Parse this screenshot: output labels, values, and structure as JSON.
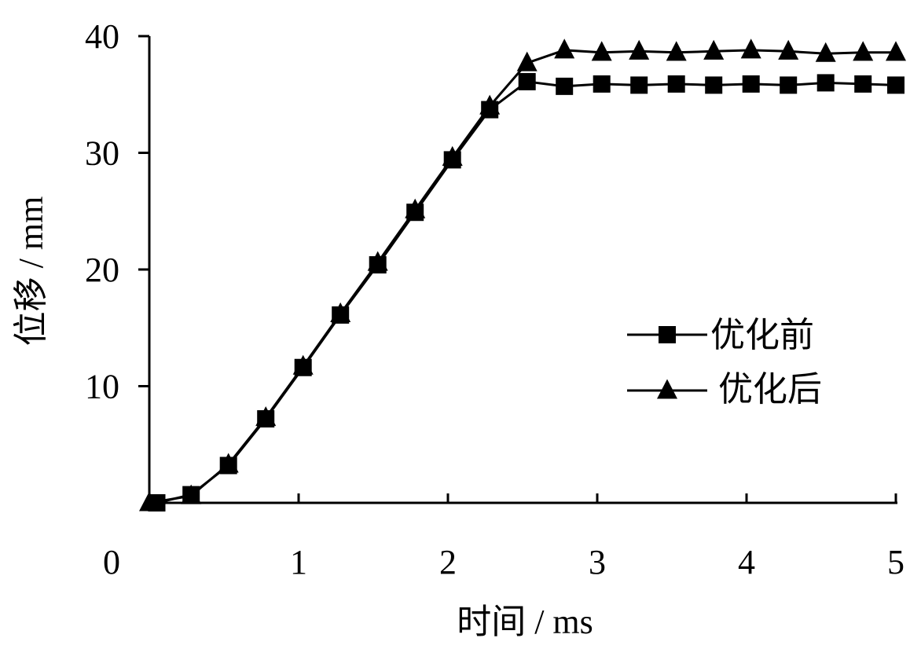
{
  "chart_data": {
    "type": "line",
    "xlabel": "时间 / ms",
    "ylabel": "位移 / mm",
    "xlim": [
      0,
      5
    ],
    "ylim": [
      0,
      40
    ],
    "x_origin_label": "0",
    "xticks": [
      1,
      2,
      3,
      4,
      5
    ],
    "xtick_labels": [
      "1",
      "2",
      "3",
      "4",
      "5"
    ],
    "yticks": [
      10,
      20,
      30,
      40
    ],
    "ytick_labels": [
      "10",
      "20",
      "30",
      "40"
    ],
    "grid": false,
    "legend_position": "right",
    "series": [
      {
        "name": "优化前",
        "marker": "square",
        "color": "#000000",
        "x": [
          0.05,
          0.28,
          0.53,
          0.78,
          1.03,
          1.28,
          1.53,
          1.78,
          2.03,
          2.28,
          2.53,
          2.78,
          3.03,
          3.28,
          3.53,
          3.78,
          4.03,
          4.28,
          4.53,
          4.78,
          5.03
        ],
        "y": [
          0,
          0.7,
          3.2,
          7.2,
          11.6,
          16.1,
          20.4,
          24.9,
          29.4,
          33.7,
          36.1,
          35.7,
          35.9,
          35.8,
          35.9,
          35.8,
          35.9,
          35.8,
          36.0,
          35.9,
          35.8
        ]
      },
      {
        "name": "优化后",
        "marker": "triangle",
        "color": "#000000",
        "x": [
          0.0,
          0.28,
          0.53,
          0.78,
          1.03,
          1.28,
          1.53,
          1.78,
          2.03,
          2.28,
          2.53,
          2.78,
          3.03,
          3.28,
          3.53,
          3.78,
          4.03,
          4.28,
          4.53,
          4.78,
          5.03
        ],
        "y": [
          0,
          0.6,
          3.3,
          7.3,
          11.7,
          16.2,
          20.6,
          25.1,
          29.6,
          34.0,
          37.7,
          38.8,
          38.6,
          38.7,
          38.6,
          38.7,
          38.8,
          38.7,
          38.5,
          38.6,
          38.6
        ]
      }
    ]
  }
}
